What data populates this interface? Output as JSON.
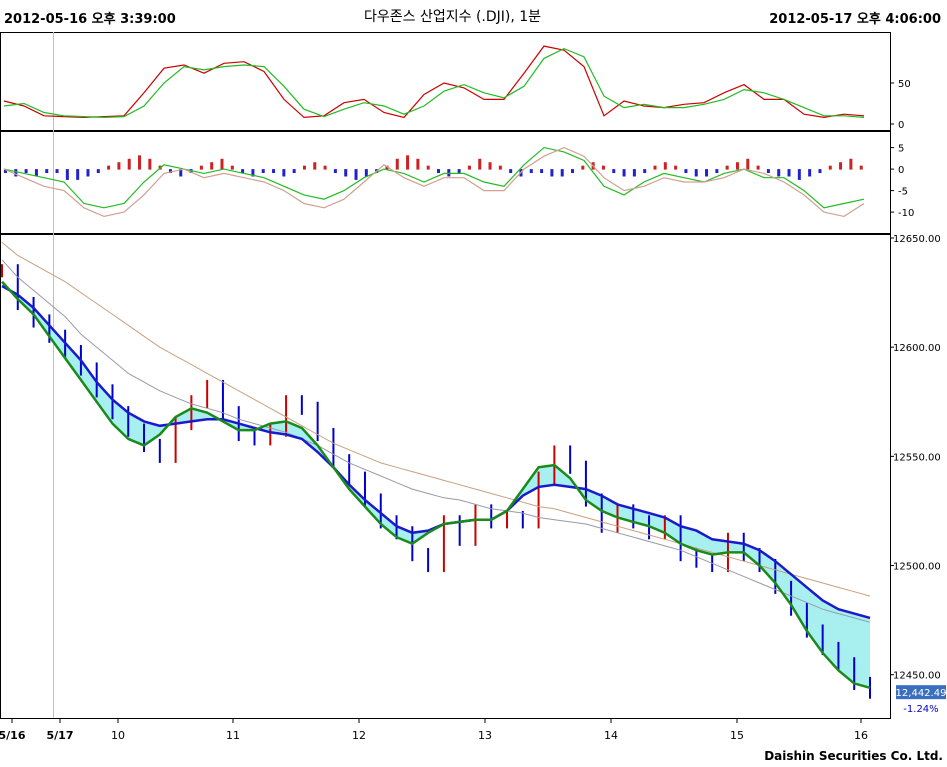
{
  "header": {
    "start_time": "2012-05-16 오후 3:39:00",
    "title": "다우존스 산업지수 (.DJI), 1분",
    "end_time": "2012-05-17 오후 4:06:00"
  },
  "footer": {
    "company": "Daishin Securities Co. Ltd."
  },
  "colors": {
    "up": "#cc0000",
    "down": "#0000cc",
    "ma_short": "#1a8a1a",
    "ma_mid": "#1a1acc",
    "ma_long1": "#9999aa",
    "ma_long2": "#c8a080",
    "fill_bear": "#a8f0f0",
    "fill_bull": "#c8a888",
    "osc_red": "#cc0000",
    "osc_green": "#22bb22",
    "hist_up": "#cc2222",
    "hist_down": "#2222cc"
  },
  "chart_data": [
    {
      "type": "line",
      "panel": "stochastic",
      "yticks": [
        "50",
        "0"
      ],
      "ylim": [
        0,
        100
      ],
      "x": [
        0,
        20,
        40,
        60,
        80,
        100,
        120,
        140,
        160,
        180,
        200,
        220,
        240,
        260,
        280,
        300,
        320,
        340,
        360,
        380,
        400,
        420,
        440,
        460,
        480,
        500,
        520,
        540,
        560,
        580,
        600,
        620,
        640,
        660,
        680,
        700,
        720,
        740,
        760,
        780,
        800,
        820,
        840,
        860
      ],
      "series": [
        {
          "color_key": "osc_red",
          "values": [
            28,
            22,
            10,
            9,
            8,
            9,
            10,
            38,
            68,
            72,
            62,
            74,
            76,
            64,
            30,
            8,
            10,
            26,
            30,
            14,
            8,
            36,
            50,
            44,
            30,
            30,
            62,
            95,
            90,
            70,
            10,
            28,
            22,
            20,
            24,
            26,
            38,
            48,
            30,
            30,
            12,
            8,
            12,
            10
          ]
        },
        {
          "color_key": "osc_green",
          "values": [
            22,
            25,
            14,
            10,
            9,
            8,
            9,
            22,
            50,
            70,
            66,
            70,
            72,
            70,
            46,
            18,
            9,
            18,
            26,
            22,
            12,
            22,
            40,
            48,
            38,
            32,
            46,
            80,
            92,
            82,
            34,
            20,
            24,
            20,
            20,
            24,
            30,
            42,
            38,
            30,
            20,
            10,
            10,
            8
          ]
        }
      ]
    },
    {
      "type": "bar",
      "panel": "macd",
      "yticks": [
        "5",
        "0",
        "-5",
        "-10"
      ],
      "ylim": [
        -13,
        7
      ],
      "histogram": [
        -1,
        -2,
        -1,
        -2,
        -1,
        -1,
        -3,
        -3,
        -2,
        -1,
        1,
        2,
        3,
        4,
        3,
        1,
        -1,
        -2,
        -1,
        1,
        2,
        3,
        1,
        -1,
        -2,
        -1,
        -1,
        -2,
        -1,
        1,
        2,
        1,
        -1,
        -2,
        -3,
        -2,
        -1,
        1,
        3,
        4,
        3,
        1,
        -1,
        -2,
        -1,
        1,
        3,
        2,
        1,
        -1,
        -2,
        -1,
        -1,
        -2,
        -2,
        -1,
        1,
        2,
        1,
        -1,
        -2,
        -2,
        -1,
        1,
        2,
        1,
        -1,
        -2,
        -2,
        -1,
        1,
        2,
        3,
        1,
        -1,
        -2,
        -2,
        -3,
        -2,
        -1,
        1,
        2,
        3,
        1
      ],
      "series": [
        {
          "color_key": "osc_green",
          "values": [
            0,
            -1,
            -2,
            -3,
            -8,
            -9,
            -8,
            -3,
            1,
            0,
            -1,
            0,
            -1,
            -2,
            -4,
            -6,
            -7,
            -5,
            -2,
            0,
            -1,
            -3,
            -1,
            -1,
            -3,
            -4,
            1,
            5,
            4,
            2,
            -4,
            -6,
            -3,
            -1,
            -2,
            -3,
            -1,
            0,
            -2,
            -2,
            -5,
            -9,
            -8,
            -7
          ]
        },
        {
          "color_key": "hist_down",
          "values": [
            0,
            -2,
            -4,
            -5,
            -9,
            -11,
            -10,
            -6,
            -1,
            0,
            -2,
            -1,
            -2,
            -3,
            -5,
            -8,
            -9,
            -7,
            -3,
            1,
            -2,
            -4,
            -2,
            -2,
            -5,
            -5,
            0,
            3,
            5,
            3,
            -2,
            -5,
            -4,
            -2,
            -3,
            -3,
            -2,
            0,
            -1,
            -3,
            -6,
            -10,
            -11,
            -8
          ]
        }
      ]
    },
    {
      "type": "line",
      "panel": "price",
      "yticks": [
        "12650.00",
        "12600.00",
        "12550.00",
        "12500.00",
        "12450.00"
      ],
      "ylim": [
        12432,
        12650
      ],
      "xticks": [
        "5/16",
        "5/17",
        "10",
        "11",
        "12",
        "13",
        "14",
        "15",
        "16"
      ],
      "current_price": "12,442.49",
      "change_pct": "-1.24%",
      "price": [
        12635,
        12620,
        12612,
        12605,
        12598,
        12590,
        12580,
        12570,
        12562,
        12555,
        12550,
        12565,
        12575,
        12582,
        12570,
        12560,
        12558,
        12562,
        12575,
        12572,
        12560,
        12548,
        12540,
        12530,
        12520,
        12515,
        12505,
        12500,
        12520,
        12512,
        12525,
        12520,
        12522,
        12520,
        12540,
        12552,
        12545,
        12530,
        12518,
        12525,
        12520,
        12515,
        12520,
        12505,
        12502,
        12500,
        12512,
        12505,
        12500,
        12490,
        12480,
        12470,
        12462,
        12455,
        12446,
        12442
      ],
      "ma_short": [
        12630,
        12622,
        12615,
        12605,
        12595,
        12585,
        12575,
        12565,
        12558,
        12555,
        12560,
        12568,
        12572,
        12570,
        12566,
        12562,
        12562,
        12565,
        12566,
        12563,
        12555,
        12545,
        12535,
        12527,
        12519,
        12513,
        12510,
        12515,
        12519,
        12520,
        12521,
        12521,
        12525,
        12535,
        12545,
        12546,
        12540,
        12530,
        12525,
        12522,
        12520,
        12518,
        12515,
        12510,
        12507,
        12505,
        12506,
        12506,
        12500,
        12492,
        12482,
        12470,
        12460,
        12452,
        12446,
        12444
      ],
      "ma_mid": [
        12628,
        12624,
        12618,
        12610,
        12602,
        12594,
        12584,
        12576,
        12570,
        12566,
        12564,
        12565,
        12566,
        12567,
        12567,
        12565,
        12563,
        12561,
        12560,
        12558,
        12552,
        12545,
        12537,
        12530,
        12524,
        12518,
        12515,
        12516,
        12519,
        12520,
        12521,
        12521,
        12525,
        12532,
        12536,
        12537,
        12536,
        12535,
        12532,
        12528,
        12526,
        12524,
        12522,
        12518,
        12516,
        12512,
        12511,
        12510,
        12507,
        12502,
        12496,
        12490,
        12484,
        12480,
        12478,
        12476
      ],
      "ma_long1": [
        12640,
        12632,
        12626,
        12620,
        12614,
        12606,
        12600,
        12594,
        12588,
        12584,
        12580,
        12577,
        12574,
        12572,
        12570,
        12567,
        12565,
        12563,
        12561,
        12558,
        12555,
        12551,
        12547,
        12544,
        12541,
        12538,
        12535,
        12533,
        12531,
        12530,
        12528,
        12526,
        12525,
        12524,
        12522,
        12521,
        12520,
        12519,
        12517,
        12515,
        12513,
        12511,
        12509,
        12507,
        12504,
        12501,
        12498,
        12495,
        12492,
        12489,
        12486,
        12483,
        12480,
        12478,
        12476,
        12474
      ],
      "ma_long2": [
        12648,
        12642,
        12638,
        12634,
        12630,
        12625,
        12620,
        12615,
        12610,
        12605,
        12600,
        12596,
        12592,
        12588,
        12584,
        12580,
        12576,
        12572,
        12568,
        12564,
        12560,
        12556,
        12553,
        12550,
        12547,
        12545,
        12543,
        12541,
        12539,
        12537,
        12535,
        12533,
        12531,
        12529,
        12527,
        12526,
        12524,
        12522,
        12520,
        12518,
        12516,
        12514,
        12512,
        12510,
        12508,
        12506,
        12504,
        12502,
        12500,
        12498,
        12496,
        12494,
        12492,
        12490,
        12488,
        12486
      ]
    }
  ]
}
